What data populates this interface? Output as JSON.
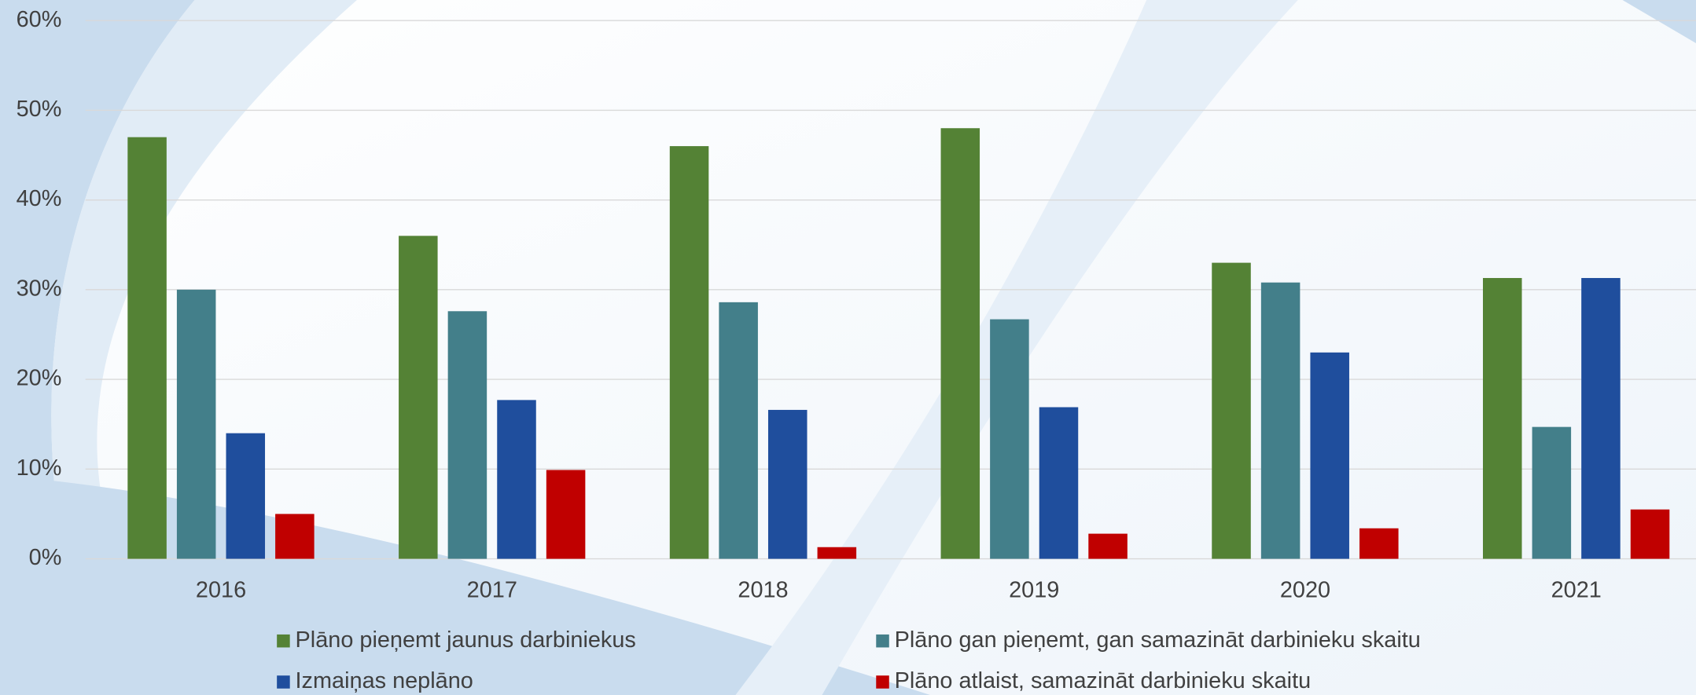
{
  "chart_data": {
    "type": "bar",
    "categories": [
      "2016",
      "2017",
      "2018",
      "2019",
      "2020",
      "2021"
    ],
    "series": [
      {
        "name": "Plāno pieņemt jaunus darbiniekus",
        "color": "#548235",
        "values": [
          47,
          36,
          46,
          48,
          33,
          31.3
        ]
      },
      {
        "name": "Plāno gan pieņemt, gan samazināt darbinieku skaitu",
        "color": "#437f8a",
        "values": [
          30,
          27.6,
          28.6,
          26.7,
          30.8,
          14.7
        ]
      },
      {
        "name": "Izmaiņas neplāno",
        "color": "#1f4e9d",
        "values": [
          14,
          17.7,
          16.6,
          16.9,
          23,
          31.3
        ]
      },
      {
        "name": "Plāno atlaist, samazināt darbinieku skaitu",
        "color": "#c00000",
        "values": [
          5,
          9.9,
          1.3,
          2.8,
          3.4,
          5.5
        ]
      }
    ],
    "ylim": [
      0,
      60
    ],
    "yticks": [
      {
        "value": 0,
        "label": "0%"
      },
      {
        "value": 10,
        "label": "10%"
      },
      {
        "value": 20,
        "label": "20%"
      },
      {
        "value": 30,
        "label": "30%"
      },
      {
        "value": 40,
        "label": "40%"
      },
      {
        "value": 50,
        "label": "50%"
      },
      {
        "value": 60,
        "label": "60%"
      }
    ],
    "grid": true,
    "legend": "bottom"
  }
}
